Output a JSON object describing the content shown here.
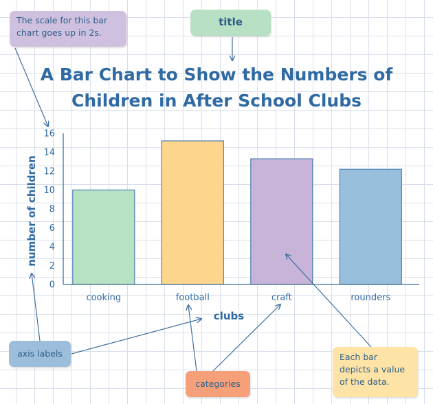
{
  "chart_data": {
    "type": "bar",
    "title_lines": [
      "A Bar Chart to Show the Numbers of",
      "Children in After School Clubs"
    ],
    "categories": [
      "cooking",
      "football",
      "craft",
      "rounders"
    ],
    "values": [
      10,
      15.2,
      13.3,
      12.2
    ],
    "colors": [
      "#b7e2c3",
      "#fed58c",
      "#c9b4d9",
      "#98bfdc"
    ],
    "bar_stroke": "#4f7fb5",
    "xlabel": "clubs",
    "ylabel": "number of children",
    "ylim": [
      0,
      16
    ],
    "yticks": [
      "0",
      "2",
      "4",
      "6",
      "8",
      "10",
      "12",
      "14",
      "16"
    ],
    "grid": true
  },
  "annotations": {
    "scale": "The scale for this bar chart goes up in 2s.",
    "title": "title",
    "axis_labels": "axis labels",
    "categories": "categories",
    "bar": "Each bar depicts a value of the data."
  }
}
